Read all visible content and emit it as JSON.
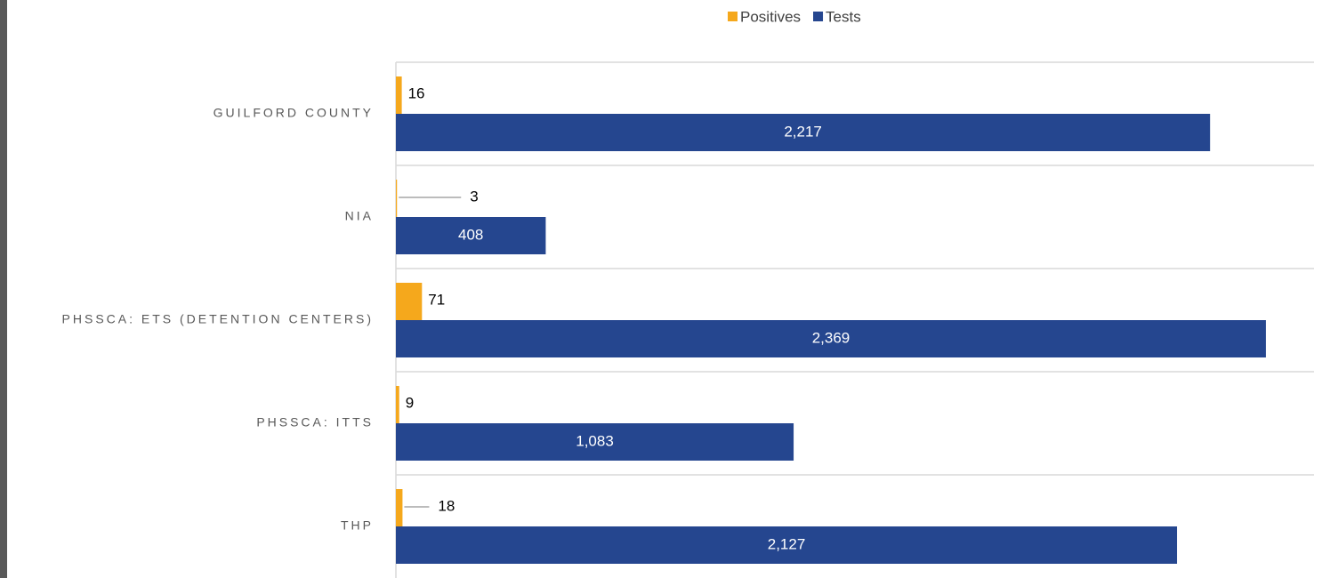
{
  "chart_data": {
    "type": "barh",
    "categories": [
      "GUILFORD COUNTY",
      "NIA",
      "PHSSCA: ETS (DETENTION CENTERS)",
      "PHSSCA: ITTS",
      "THP"
    ],
    "series": [
      {
        "name": "Positives",
        "color": "#f5a81c",
        "values": [
          16,
          3,
          71,
          9,
          18
        ]
      },
      {
        "name": "Tests",
        "color": "#25468f",
        "values": [
          2217,
          408,
          2369,
          1083,
          2127
        ],
        "value_labels": [
          "2,217",
          "408",
          "2,369",
          "1,083",
          "2,127"
        ]
      }
    ],
    "xlim": [
      0,
      2500
    ],
    "legend": "top"
  }
}
